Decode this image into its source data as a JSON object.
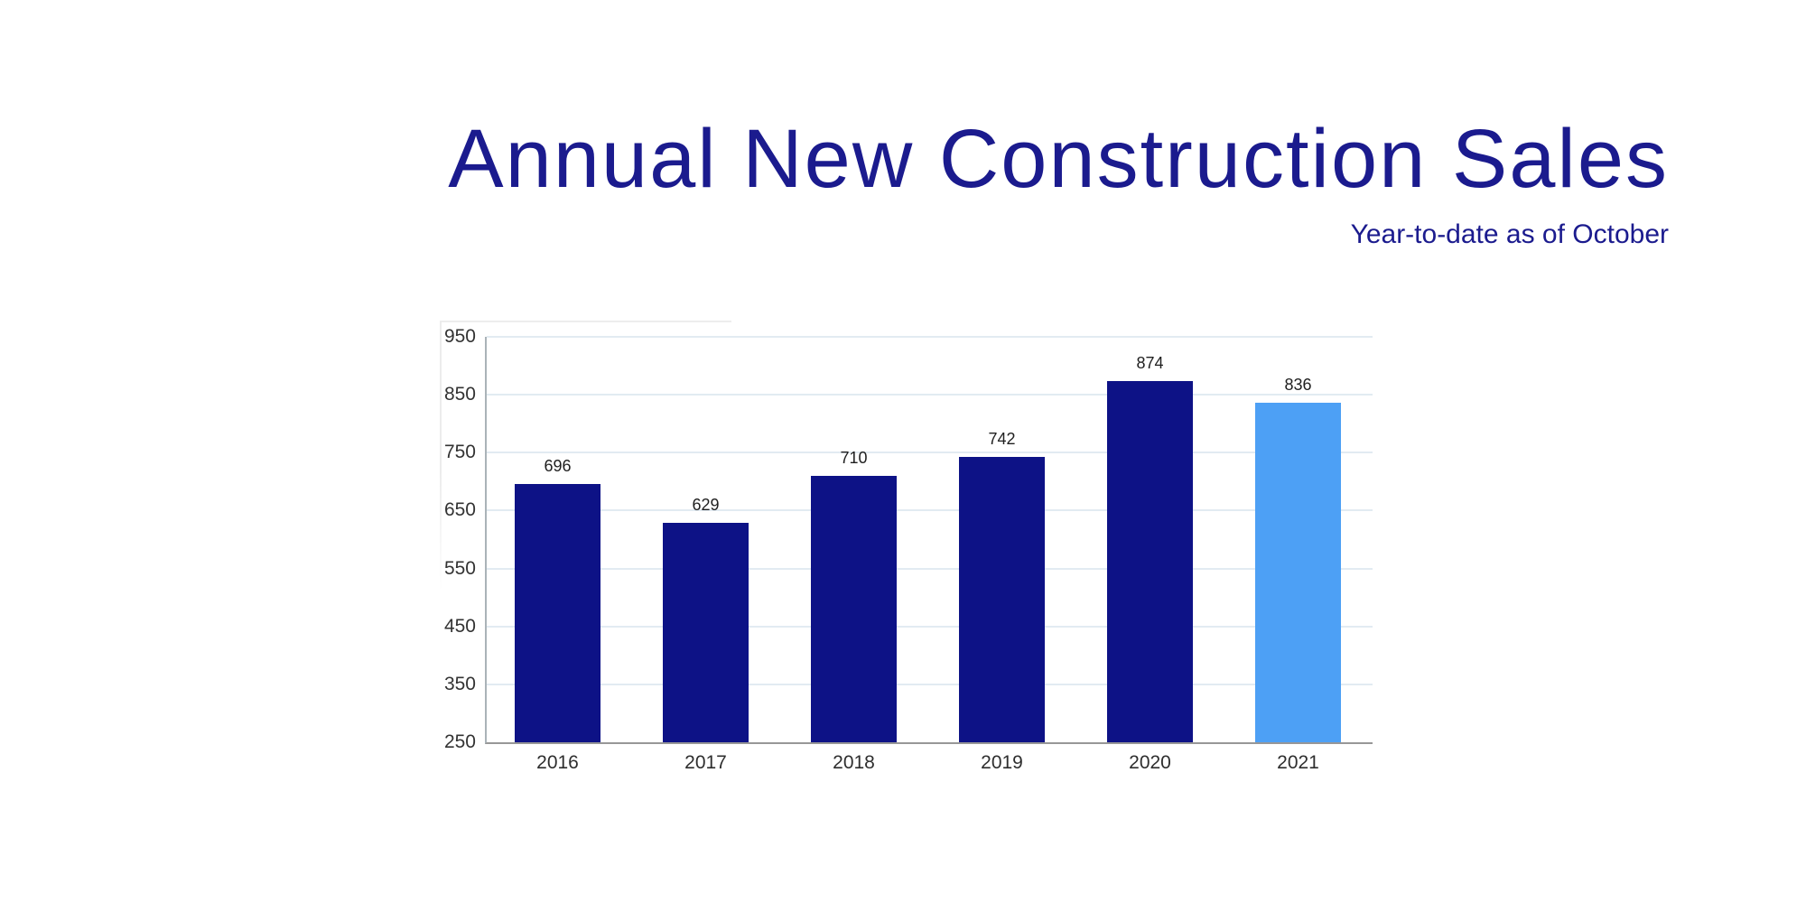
{
  "slide": {
    "title": "Annual New Construction Sales",
    "subtitle": "Year-to-date as of October",
    "title_color": "#1b1b8e"
  },
  "chart_data": {
    "type": "bar",
    "title": "Annual New Construction Sales",
    "subtitle": "Year-to-date as of October",
    "categories": [
      "2016",
      "2017",
      "2018",
      "2019",
      "2020",
      "2021"
    ],
    "values": [
      696,
      629,
      710,
      742,
      874,
      836
    ],
    "data_labels": [
      "696",
      "629",
      "710",
      "742",
      "874",
      "836"
    ],
    "bar_color": "#0d1286",
    "highlight_color": "#4da0f5",
    "highlight_index": 5,
    "ylim": [
      250,
      950
    ],
    "yticks": [
      250,
      350,
      450,
      550,
      650,
      750,
      850,
      950
    ],
    "grid": true,
    "grid_color": "#e2ebf2",
    "axis_color": "#979797",
    "legend": "none"
  }
}
